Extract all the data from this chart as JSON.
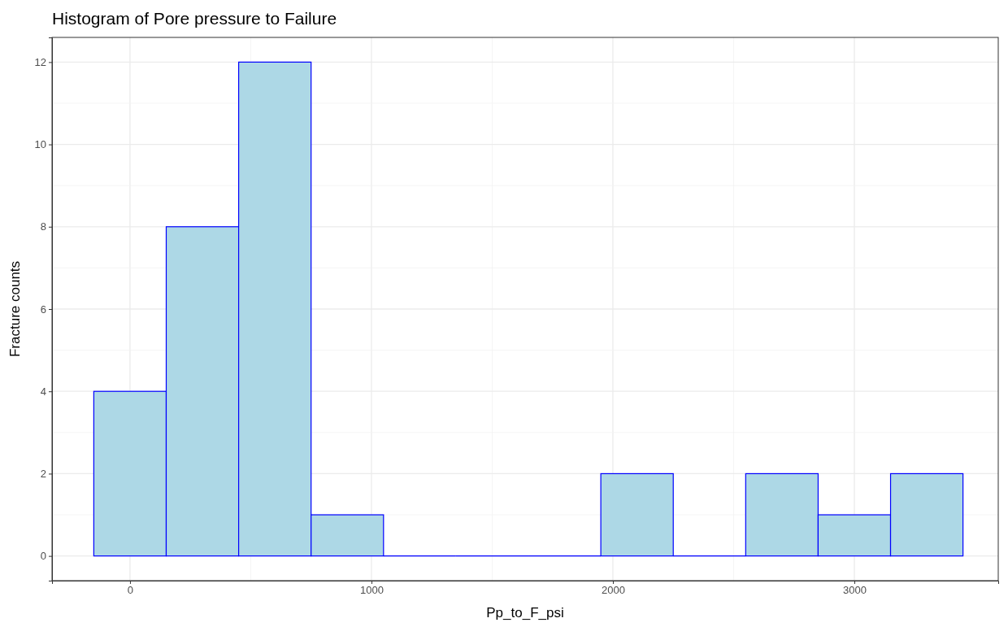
{
  "chart_data": {
    "type": "histogram",
    "title": "Histogram of Pore pressure to Failure",
    "xlabel": "Pp_to_F_psi",
    "ylabel": "Fracture counts",
    "bins": [
      -150,
      150,
      450,
      750,
      1050,
      1350,
      1650,
      1950,
      2250,
      2550,
      2850,
      3150,
      3450
    ],
    "values": [
      4,
      8,
      12,
      1,
      0,
      0,
      0,
      2,
      0,
      2,
      1,
      2
    ],
    "color": "#add8e6",
    "xlim": [
      -323,
      3596
    ],
    "xticks": [
      0,
      1000,
      2000,
      3000
    ],
    "ylim": [
      -0.6,
      12.6
    ],
    "yticks": [
      0,
      2,
      4,
      6,
      8,
      10,
      12
    ],
    "grid": true
  }
}
